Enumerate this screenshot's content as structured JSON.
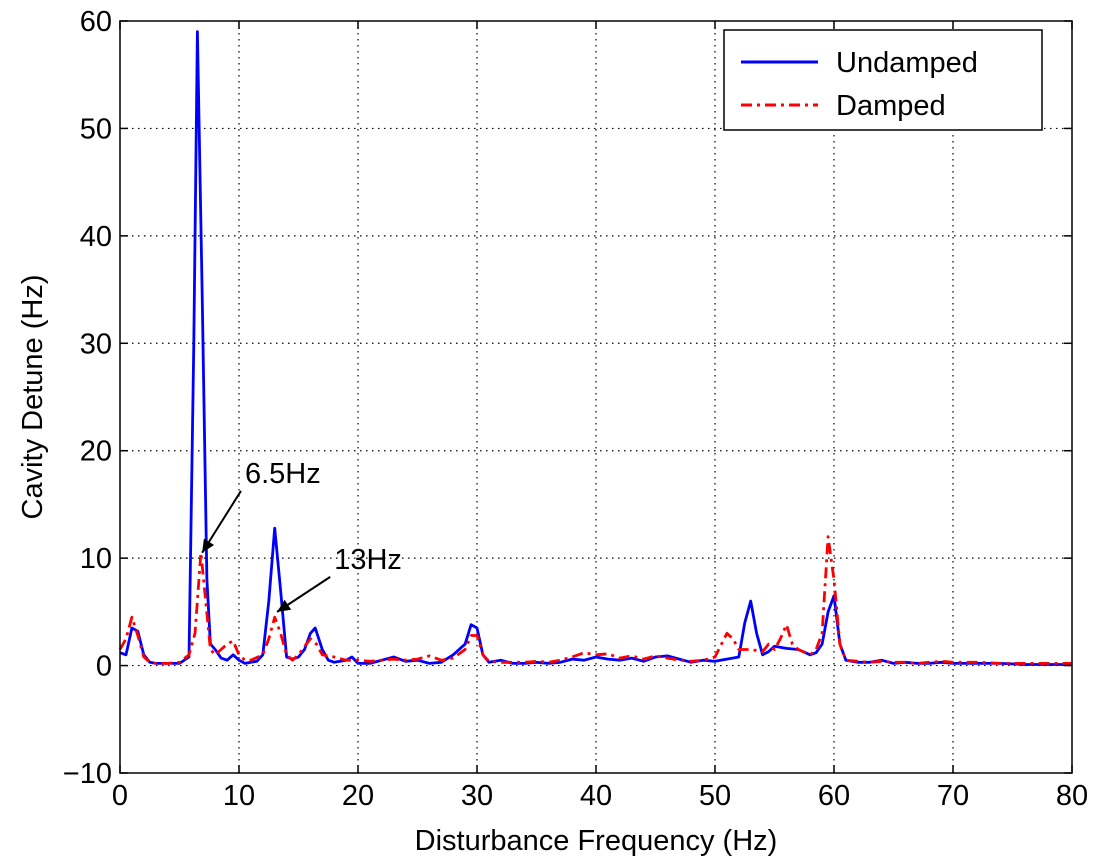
{
  "chart_data": {
    "type": "line",
    "title": "",
    "xlabel": "Disturbance Frequency (Hz)",
    "ylabel": "Cavity Detune (Hz)",
    "xlim": [
      0,
      80
    ],
    "ylim": [
      -10,
      60
    ],
    "xticks": [
      0,
      10,
      20,
      30,
      40,
      50,
      60,
      70,
      80
    ],
    "yticks": [
      -10,
      0,
      10,
      20,
      30,
      40,
      50,
      60
    ],
    "xtick_labels": [
      "0",
      "10",
      "20",
      "30",
      "40",
      "50",
      "60",
      "70",
      "80"
    ],
    "ytick_labels": [
      "−10",
      "0",
      "10",
      "20",
      "30",
      "40",
      "50",
      "60"
    ],
    "grid": true,
    "grid_style": "dotted",
    "legend_position": "top-right",
    "series": [
      {
        "name": "Undamped",
        "color": "#0000ff",
        "line_style": "solid",
        "points": [
          [
            0,
            1.2
          ],
          [
            0.5,
            1
          ],
          [
            1,
            3.5
          ],
          [
            1.5,
            3.2
          ],
          [
            2,
            1
          ],
          [
            2.5,
            0.3
          ],
          [
            3,
            0.2
          ],
          [
            4,
            0.2
          ],
          [
            5,
            0.2
          ],
          [
            5.8,
            0.8
          ],
          [
            6.2,
            30
          ],
          [
            6.5,
            59
          ],
          [
            6.9,
            35
          ],
          [
            7.3,
            8
          ],
          [
            7.6,
            2
          ],
          [
            8,
            1.5
          ],
          [
            8.5,
            0.7
          ],
          [
            9,
            0.5
          ],
          [
            9.5,
            1.0
          ],
          [
            10,
            0.5
          ],
          [
            10.5,
            0.2
          ],
          [
            11,
            0.3
          ],
          [
            11.5,
            0.4
          ],
          [
            12,
            1
          ],
          [
            12.5,
            6
          ],
          [
            13,
            12.8
          ],
          [
            13.5,
            7
          ],
          [
            14,
            0.8
          ],
          [
            14.5,
            0.6
          ],
          [
            15,
            0.8
          ],
          [
            15.5,
            1.5
          ],
          [
            16,
            3
          ],
          [
            16.4,
            3.5
          ],
          [
            17,
            1.5
          ],
          [
            17.5,
            0.5
          ],
          [
            18,
            0.3
          ],
          [
            19,
            0.5
          ],
          [
            19.5,
            0.8
          ],
          [
            20,
            0.2
          ],
          [
            21,
            0.2
          ],
          [
            22,
            0.5
          ],
          [
            23,
            0.8
          ],
          [
            24,
            0.4
          ],
          [
            25,
            0.5
          ],
          [
            26,
            0.2
          ],
          [
            27,
            0.3
          ],
          [
            28,
            1.0
          ],
          [
            29,
            2.0
          ],
          [
            29.5,
            3.8
          ],
          [
            30,
            3.5
          ],
          [
            30.5,
            1
          ],
          [
            31,
            0.3
          ],
          [
            32,
            0.5
          ],
          [
            33,
            0.2
          ],
          [
            34,
            0.2
          ],
          [
            35,
            0.3
          ],
          [
            36,
            0.2
          ],
          [
            37,
            0.3
          ],
          [
            38,
            0.6
          ],
          [
            39,
            0.5
          ],
          [
            40,
            0.8
          ],
          [
            41,
            0.6
          ],
          [
            42,
            0.5
          ],
          [
            43,
            0.7
          ],
          [
            44,
            0.4
          ],
          [
            45,
            0.8
          ],
          [
            46,
            0.9
          ],
          [
            47,
            0.6
          ],
          [
            48,
            0.3
          ],
          [
            49,
            0.5
          ],
          [
            50,
            0.4
          ],
          [
            51,
            0.6
          ],
          [
            52,
            0.8
          ],
          [
            52.5,
            4
          ],
          [
            53,
            6
          ],
          [
            53.5,
            3
          ],
          [
            54,
            1
          ],
          [
            54.5,
            1.3
          ],
          [
            55,
            1.8
          ],
          [
            56,
            1.6
          ],
          [
            57,
            1.5
          ],
          [
            58,
            1
          ],
          [
            58.5,
            1.2
          ],
          [
            59,
            2
          ],
          [
            59.5,
            5
          ],
          [
            60,
            6.5
          ],
          [
            60.5,
            2
          ],
          [
            61,
            0.5
          ],
          [
            62,
            0.3
          ],
          [
            63,
            0.3
          ],
          [
            64,
            0.5
          ],
          [
            65,
            0.2
          ],
          [
            66,
            0.3
          ],
          [
            67,
            0.2
          ],
          [
            68,
            0.2
          ],
          [
            69,
            0.3
          ],
          [
            70,
            0.2
          ],
          [
            72,
            0.2
          ],
          [
            74,
            0.2
          ],
          [
            76,
            0.1
          ],
          [
            78,
            0.1
          ],
          [
            80,
            0.1
          ]
        ]
      },
      {
        "name": "Damped",
        "color": "#ff0000",
        "line_style": "dash-dot",
        "points": [
          [
            0,
            1.5
          ],
          [
            0.5,
            2.5
          ],
          [
            1,
            4.5
          ],
          [
            1.5,
            2.8
          ],
          [
            2,
            0.8
          ],
          [
            2.5,
            0.3
          ],
          [
            3,
            0.2
          ],
          [
            4,
            0.2
          ],
          [
            5,
            0.3
          ],
          [
            5.8,
            1
          ],
          [
            6.3,
            3
          ],
          [
            6.8,
            10.5
          ],
          [
            7.2,
            6
          ],
          [
            7.6,
            1.5
          ],
          [
            8,
            1
          ],
          [
            8.5,
            1.5
          ],
          [
            9,
            2
          ],
          [
            9.5,
            2.3
          ],
          [
            10,
            1
          ],
          [
            10.5,
            0.5
          ],
          [
            11,
            0.5
          ],
          [
            12,
            1
          ],
          [
            12.5,
            2.5
          ],
          [
            13,
            4.5
          ],
          [
            13.5,
            3
          ],
          [
            14,
            1
          ],
          [
            14.5,
            0.5
          ],
          [
            15,
            1
          ],
          [
            16,
            2.5
          ],
          [
            16.5,
            2
          ],
          [
            17,
            1
          ],
          [
            18,
            0.8
          ],
          [
            19,
            0.5
          ],
          [
            20,
            0.5
          ],
          [
            21,
            0.4
          ],
          [
            22,
            0.5
          ],
          [
            23,
            0.6
          ],
          [
            24,
            0.5
          ],
          [
            25,
            0.6
          ],
          [
            26,
            0.9
          ],
          [
            27,
            0.5
          ],
          [
            28,
            0.7
          ],
          [
            29,
            1.5
          ],
          [
            29.5,
            2.8
          ],
          [
            30,
            2.8
          ],
          [
            30.5,
            1
          ],
          [
            31,
            0.4
          ],
          [
            32,
            0.3
          ],
          [
            33,
            0.3
          ],
          [
            34,
            0.3
          ],
          [
            35,
            0.4
          ],
          [
            36,
            0.3
          ],
          [
            37,
            0.5
          ],
          [
            38,
            0.8
          ],
          [
            39,
            1.2
          ],
          [
            40,
            1.0
          ],
          [
            41,
            1.1
          ],
          [
            42,
            0.7
          ],
          [
            43,
            0.9
          ],
          [
            44,
            0.6
          ],
          [
            45,
            0.9
          ],
          [
            46,
            0.7
          ],
          [
            47,
            0.5
          ],
          [
            48,
            0.4
          ],
          [
            49,
            0.5
          ],
          [
            50,
            0.8
          ],
          [
            51,
            3
          ],
          [
            51.5,
            2.5
          ],
          [
            52,
            1.5
          ],
          [
            53,
            1.5
          ],
          [
            54,
            1.3
          ],
          [
            54.5,
            2
          ],
          [
            55,
            1.5
          ],
          [
            55.5,
            2.5
          ],
          [
            56,
            3.8
          ],
          [
            56.5,
            2
          ],
          [
            57,
            1.5
          ],
          [
            58,
            1
          ],
          [
            58.5,
            1.5
          ],
          [
            59,
            3
          ],
          [
            59.5,
            12
          ],
          [
            60,
            8
          ],
          [
            60.5,
            2
          ],
          [
            61,
            0.5
          ],
          [
            62,
            0.4
          ],
          [
            63,
            0.3
          ],
          [
            64,
            0.4
          ],
          [
            65,
            0.3
          ],
          [
            66,
            0.3
          ],
          [
            67,
            0.2
          ],
          [
            68,
            0.3
          ],
          [
            69,
            0.4
          ],
          [
            70,
            0.3
          ],
          [
            72,
            0.3
          ],
          [
            74,
            0.2
          ],
          [
            76,
            0.2
          ],
          [
            78,
            0.2
          ],
          [
            80,
            0.2
          ]
        ]
      }
    ],
    "annotations": [
      {
        "text": "6.5Hz",
        "target": [
          6.9,
          10.5
        ],
        "text_at": [
          10.5,
          17
        ]
      },
      {
        "text": "13Hz",
        "target": [
          13.2,
          5
        ],
        "text_at": [
          18,
          9
        ]
      }
    ]
  }
}
